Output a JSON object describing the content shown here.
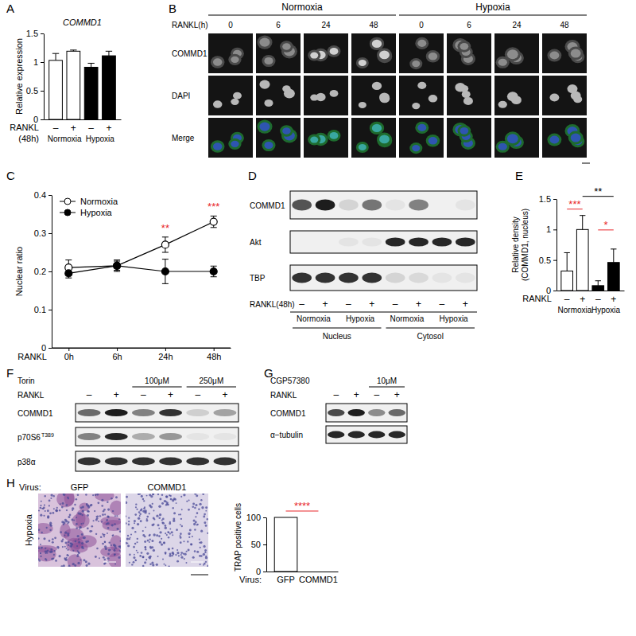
{
  "chart_data": [
    {
      "type": "bar",
      "title": "COMMD1",
      "y_label": "Relative expression",
      "x_label": "RANKL",
      "x_label_note": "(48h)",
      "categories": [
        "–",
        "+",
        "–",
        "+"
      ],
      "groups": [
        "Normoxia",
        "Hypoxia"
      ],
      "values": [
        1.03,
        1.19,
        0.91,
        1.11
      ],
      "errors": [
        0.12,
        0.02,
        0.07,
        0.08
      ],
      "colors": [
        "#ffffff",
        "#ffffff",
        "#000000",
        "#000000"
      ],
      "ylim": [
        0,
        1.5
      ],
      "yticks": [
        0,
        0.5,
        1,
        1.5
      ]
    },
    {
      "type": "line",
      "y_label": "Nuclear ratio",
      "x_label": "RANKL",
      "categories": [
        "0h",
        "6h",
        "24h",
        "48h"
      ],
      "series": [
        {
          "name": "Normoxia",
          "color": "#000000",
          "marker": "open-circle",
          "values": [
            0.21,
            0.215,
            0.27,
            0.33
          ],
          "errors": [
            0.02,
            0.012,
            0.02,
            0.015
          ]
        },
        {
          "name": "Hypoxia",
          "color": "#000000",
          "marker": "filled-circle",
          "values": [
            0.195,
            0.215,
            0.2,
            0.2
          ],
          "errors": [
            0.012,
            0.015,
            0.032,
            0.014
          ]
        }
      ],
      "legend": "upper left",
      "ylim": [
        0,
        0.4
      ],
      "yticks": [
        0,
        0.1,
        0.2,
        0.3,
        0.4
      ],
      "annotations": [
        {
          "text": "**",
          "at": 2,
          "color": "#e8262a"
        },
        {
          "text": "***",
          "at": 3,
          "color": "#e8262a"
        }
      ]
    },
    {
      "type": "bar",
      "y_label": [
        "Relative density",
        "(COMMD1, nucleus)"
      ],
      "x_label": "RANKL",
      "categories": [
        "–",
        "+",
        "–",
        "+"
      ],
      "groups": [
        "Normoxia",
        "Hypoxia"
      ],
      "values": [
        0.32,
        1.0,
        0.08,
        0.46
      ],
      "errors": [
        0.3,
        0.23,
        0.08,
        0.22
      ],
      "colors": [
        "#ffffff",
        "#ffffff",
        "#000000",
        "#000000"
      ],
      "ylim": [
        0,
        1.5
      ],
      "yticks": [
        0,
        0.5,
        1,
        1.5
      ],
      "annotations": [
        {
          "text": "***",
          "between": [
            0,
            1
          ],
          "color": "#e8262a"
        },
        {
          "text": "**",
          "between": [
            1,
            3
          ],
          "color": "#000000"
        },
        {
          "text": "*",
          "between": [
            2,
            3
          ],
          "color": "#e8262a"
        }
      ]
    },
    {
      "type": "bar",
      "y_label": "TRAP positive cells",
      "x_label": "Virus:",
      "categories": [
        "GFP",
        "COMMD1"
      ],
      "values": [
        100,
        0
      ],
      "colors": [
        "#ffffff",
        "#ffffff"
      ],
      "ylim": [
        0,
        100
      ],
      "yticks": [
        0,
        50,
        100
      ],
      "annotations": [
        {
          "text": "****",
          "between": [
            0,
            1
          ],
          "color": "#e8262a"
        }
      ]
    }
  ],
  "figure": {
    "panel_labels": [
      "A",
      "B",
      "C",
      "D",
      "E",
      "F",
      "G",
      "H"
    ],
    "B": {
      "conditions": [
        "Normoxia",
        "Hypoxia"
      ],
      "time_label": "RANKL(h)",
      "times": [
        "0",
        "6",
        "24",
        "48"
      ],
      "rows": [
        "COMMD1",
        "DAPI",
        "Merge"
      ]
    },
    "D": {
      "rows": [
        "COMMD1",
        "Akt",
        "TBP"
      ],
      "treatment_label": "RANKL(48h)",
      "lanes": [
        "–",
        "+",
        "–",
        "+",
        "–",
        "+",
        "–",
        "+"
      ],
      "conditions": [
        "Normoxia",
        "Hypoxia",
        "Normoxia",
        "Hypoxia"
      ],
      "fractions": [
        "Nucleus",
        "Cytosol"
      ]
    },
    "F": {
      "treatment_label": "Torin",
      "doses": [
        "100μM",
        "250μM"
      ],
      "rankl_label": "RANKL",
      "lanes": [
        "–",
        "+",
        "–",
        "+",
        "–",
        "+"
      ],
      "rows": [
        {
          "label": "COMMD1"
        },
        {
          "label": "p70S6",
          "sup": "T389"
        },
        {
          "label": "p38α"
        }
      ]
    },
    "G": {
      "treatment_label": "CGP57380",
      "doses": [
        "10μM"
      ],
      "rankl_label": "RANKL",
      "lanes": [
        "–",
        "+",
        "–",
        "+"
      ],
      "rows": [
        {
          "label": "COMMD1"
        },
        {
          "label": "α−tubulin"
        }
      ]
    },
    "H": {
      "virus_label": "Virus:",
      "viruses": [
        "GFP",
        "COMMD1"
      ],
      "condition": "Hypoxia"
    }
  }
}
